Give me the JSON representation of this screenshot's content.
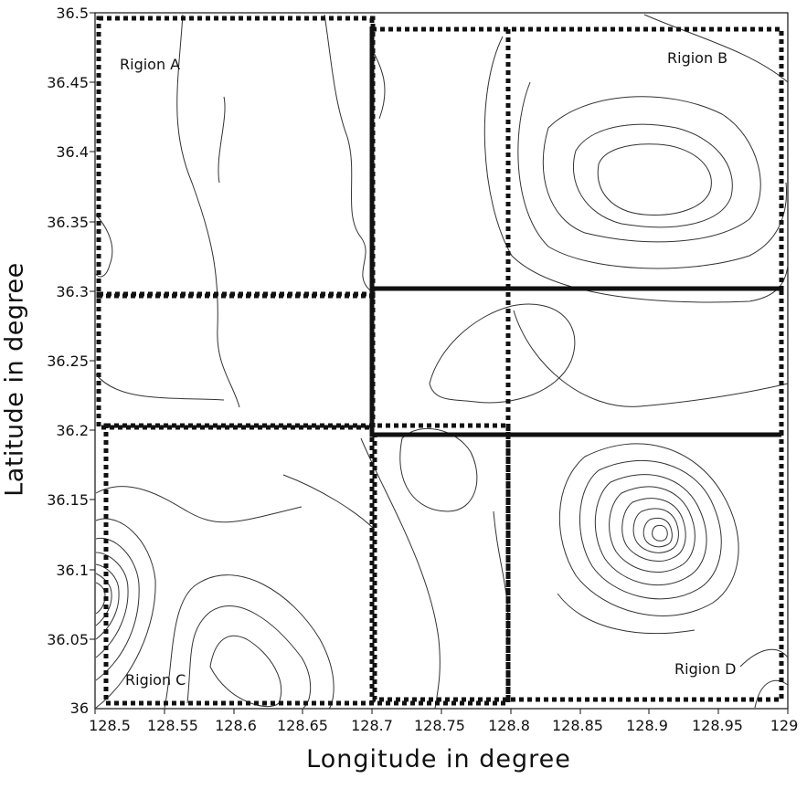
{
  "map": {
    "xlabel": "Longitude in degree",
    "ylabel": "Latitude in degree",
    "xticks": [
      "128.5",
      "128.55",
      "128.6",
      "128.65",
      "128.7",
      "128.75",
      "128.8",
      "128.85",
      "128.9",
      "128.95",
      "129"
    ],
    "yticks": [
      "36.5",
      "36.45",
      "36.4",
      "36.35",
      "36.3",
      "36.25",
      "36.2",
      "36.15",
      "36.1",
      "36.05",
      "36"
    ],
    "regions": [
      {
        "label": "Rigion A",
        "lon_min": 128.5,
        "lon_max": 128.7,
        "lat_min": 36.2,
        "lat_max": 36.5
      },
      {
        "label": "Rigion B",
        "lon_min": 128.7,
        "lon_max": 129.0,
        "lat_min": 36.3,
        "lat_max": 36.49
      },
      {
        "label": "Rigion C",
        "lon_min": 128.5,
        "lon_max": 128.8,
        "lat_min": 36.0,
        "lat_max": 36.2
      },
      {
        "label": "Rigion D",
        "lon_min": 128.7,
        "lon_max": 129.0,
        "lat_min": 36.0,
        "lat_max": 36.2
      }
    ],
    "colors": {
      "contour": "#333333",
      "region_border": "#111111",
      "axes": "#111111"
    }
  }
}
